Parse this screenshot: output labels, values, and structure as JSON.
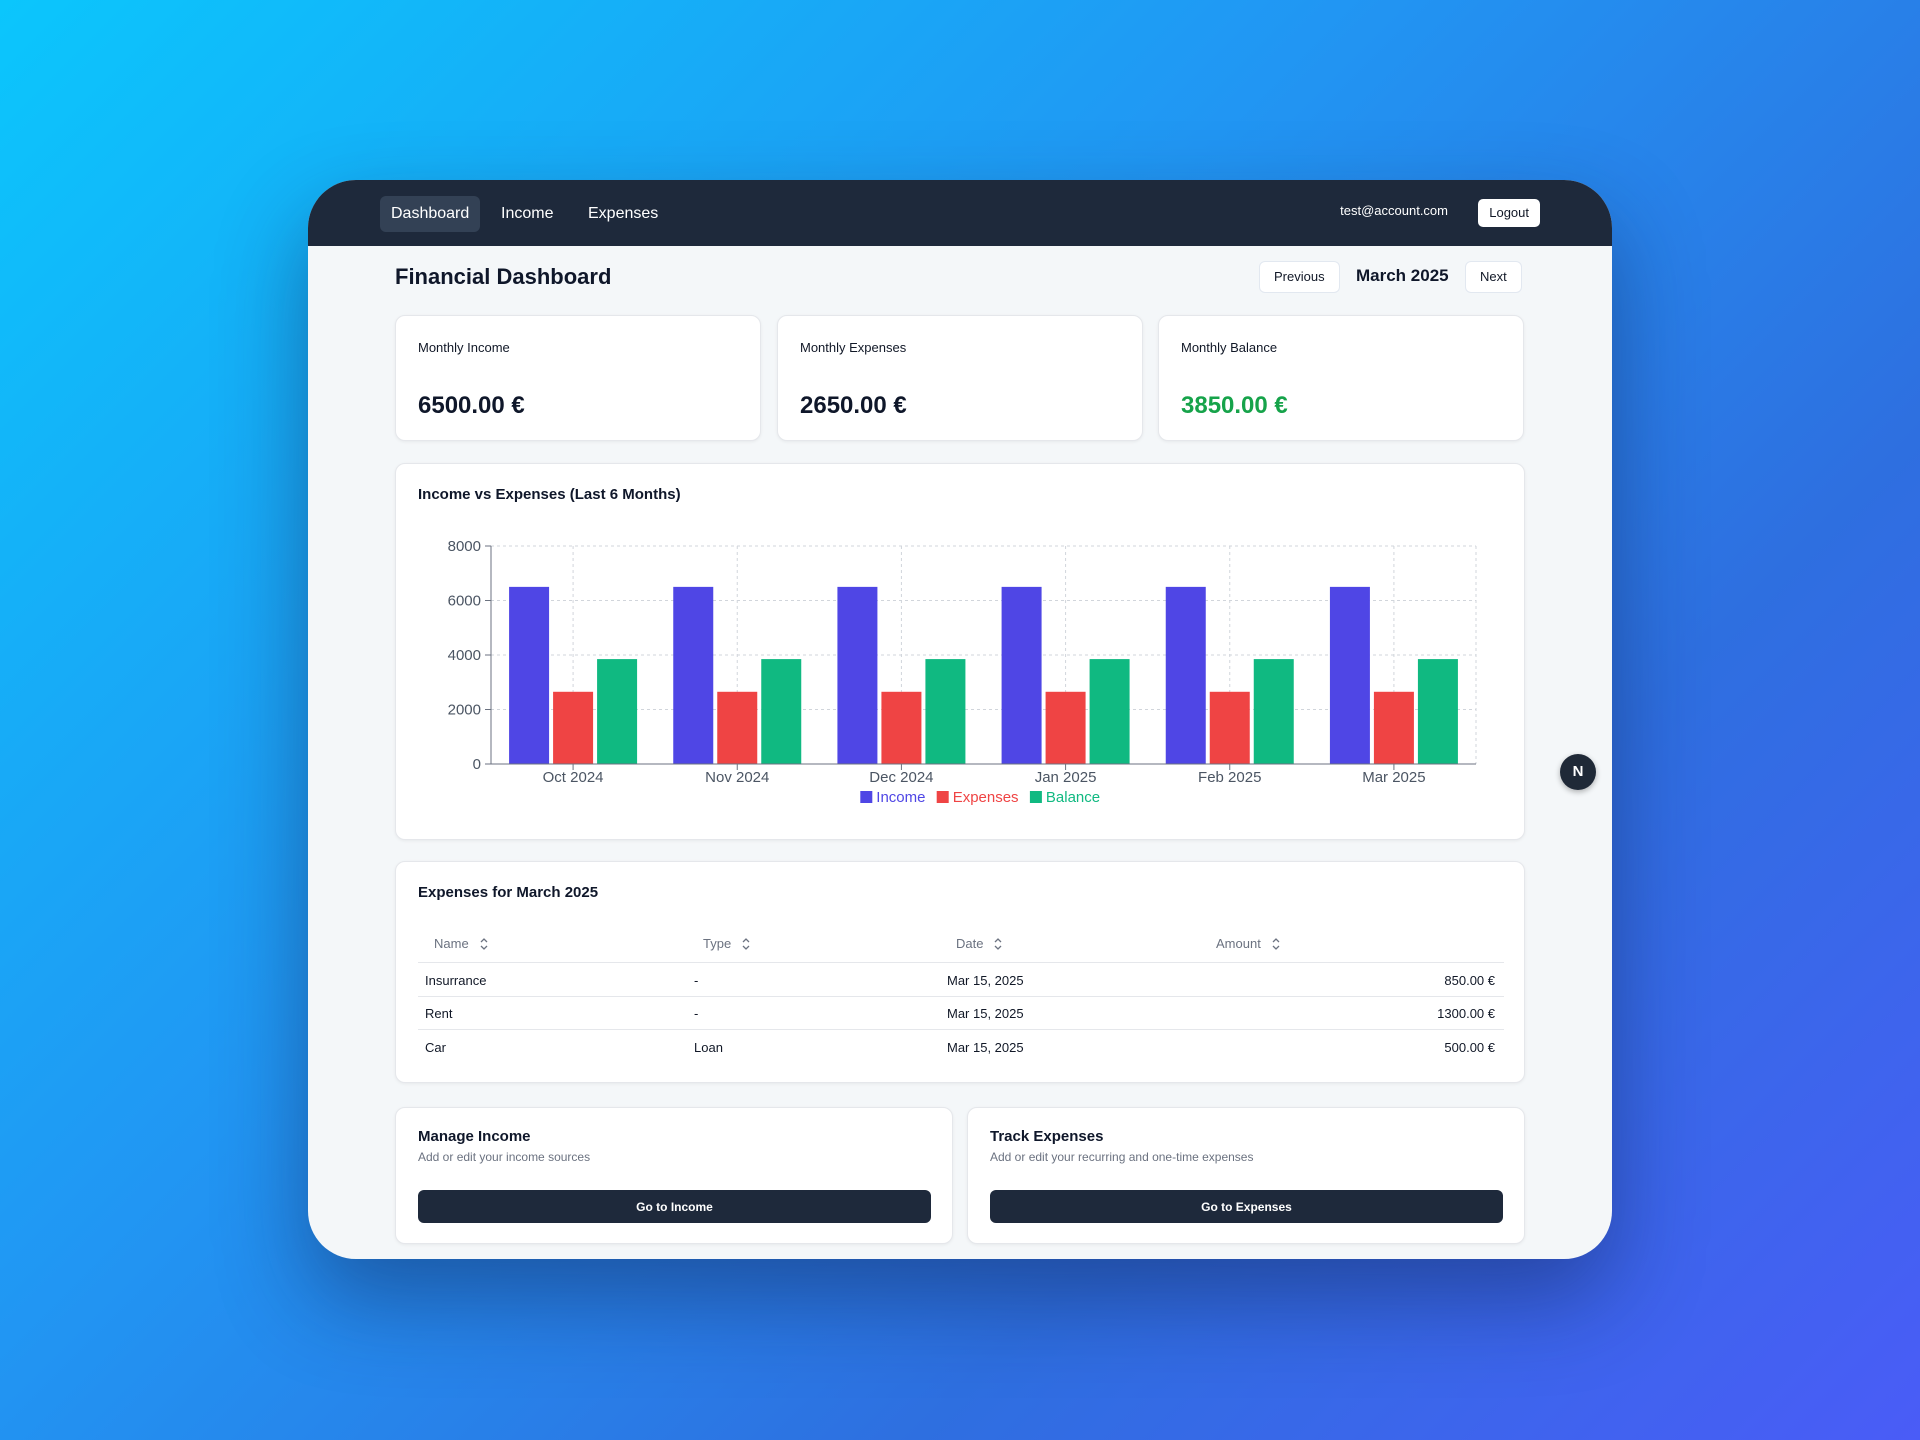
{
  "nav": {
    "links": [
      "Dashboard",
      "Income",
      "Expenses"
    ],
    "active": "Dashboard",
    "user_email": "test@account.com",
    "logout_label": "Logout"
  },
  "header": {
    "title": "Financial Dashboard",
    "prev_label": "Previous",
    "month": "March 2025",
    "next_label": "Next"
  },
  "summary": {
    "income": {
      "label": "Monthly Income",
      "value": "6500.00 €"
    },
    "expenses": {
      "label": "Monthly Expenses",
      "value": "2650.00 €"
    },
    "balance": {
      "label": "Monthly Balance",
      "value": "3850.00 €"
    }
  },
  "chart_data": {
    "type": "bar",
    "title": "Income vs Expenses (Last 6 Months)",
    "categories": [
      "Oct 2024",
      "Nov 2024",
      "Dec 2024",
      "Jan 2025",
      "Feb 2025",
      "Mar 2025"
    ],
    "series": [
      {
        "name": "Income",
        "color": "#4f46e5",
        "values": [
          6500,
          6500,
          6500,
          6500,
          6500,
          6500
        ]
      },
      {
        "name": "Expenses",
        "color": "#ef4444",
        "values": [
          2650,
          2650,
          2650,
          2650,
          2650,
          2650
        ]
      },
      {
        "name": "Balance",
        "color": "#10b981",
        "values": [
          3850,
          3850,
          3850,
          3850,
          3850,
          3850
        ]
      }
    ],
    "ylim": [
      0,
      8000
    ],
    "yticks": [
      0,
      2000,
      4000,
      6000,
      8000
    ],
    "grid": true,
    "legend": "bottom-center"
  },
  "expenses_table": {
    "title": "Expenses for March 2025",
    "columns": [
      "Name",
      "Type",
      "Date",
      "Amount"
    ],
    "rows": [
      {
        "name": "Insurrance",
        "type": "-",
        "date": "Mar 15, 2025",
        "amount": "850.00 €"
      },
      {
        "name": "Rent",
        "type": "-",
        "date": "Mar 15, 2025",
        "amount": "1300.00 €"
      },
      {
        "name": "Car",
        "type": "Loan",
        "date": "Mar 15, 2025",
        "amount": "500.00 €"
      }
    ]
  },
  "actions": {
    "income": {
      "title": "Manage Income",
      "desc": "Add or edit your income sources",
      "button": "Go to Income"
    },
    "expenses": {
      "title": "Track Expenses",
      "desc": "Add or edit your recurring and one-time expenses",
      "button": "Go to Expenses"
    }
  },
  "dev_badge": "N"
}
